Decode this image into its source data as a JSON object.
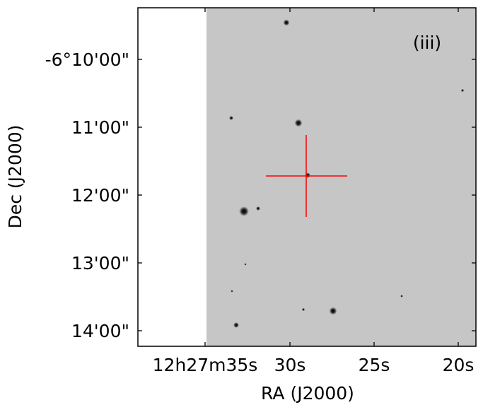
{
  "panel_label": "(iii)",
  "x_axis": {
    "title": "RA (J2000)",
    "tick_labels": [
      "12h27m35s",
      "30s",
      "25s",
      "20s"
    ]
  },
  "y_axis": {
    "title": "Dec (J2000)",
    "tick_labels": [
      "-6°10'00\"",
      "11'00\"",
      "12'00\"",
      "13'00\"",
      "14'00\""
    ]
  },
  "colors": {
    "sky_background": "#c6c6c6",
    "no_data_region": "#ffffff",
    "crosshair": "#ff0000",
    "frame": "#000000"
  },
  "target_marker": "red-crosshair"
}
